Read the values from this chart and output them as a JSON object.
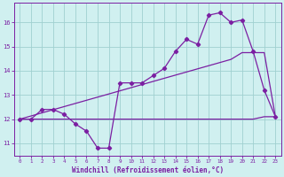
{
  "x": [
    0,
    1,
    2,
    3,
    4,
    5,
    6,
    7,
    8,
    9,
    10,
    11,
    12,
    13,
    14,
    15,
    16,
    17,
    18,
    19,
    20,
    21,
    22,
    23
  ],
  "windchill": [
    12.0,
    12.0,
    12.4,
    12.4,
    12.2,
    11.8,
    11.5,
    10.8,
    10.8,
    13.5,
    13.5,
    13.5,
    13.8,
    14.1,
    14.8,
    15.3,
    15.1,
    16.3,
    16.4,
    16.0,
    16.1,
    14.8,
    13.2,
    12.1
  ],
  "smooth_line": [
    12.0,
    12.13,
    12.26,
    12.39,
    12.52,
    12.65,
    12.78,
    12.91,
    13.04,
    13.17,
    13.3,
    13.43,
    13.56,
    13.69,
    13.82,
    13.95,
    14.08,
    14.21,
    14.34,
    14.47,
    14.75,
    14.75,
    14.75,
    12.1
  ],
  "flat_line_x": [
    0,
    1,
    2,
    3,
    4,
    5,
    6,
    7,
    8,
    9,
    10,
    11,
    12,
    13,
    14,
    15,
    16,
    17,
    18,
    19,
    20,
    21,
    22,
    23
  ],
  "flat_line_y": [
    12.0,
    12.0,
    12.0,
    12.0,
    12.0,
    12.0,
    12.0,
    12.0,
    12.0,
    12.0,
    12.0,
    12.0,
    12.0,
    12.0,
    12.0,
    12.0,
    12.0,
    12.0,
    12.0,
    12.0,
    12.0,
    12.0,
    12.1,
    12.1
  ],
  "line_color": "#7b1fa2",
  "bg_color": "#d0f0f0",
  "grid_color": "#a0d0d0",
  "xlabel": "Windchill (Refroidissement éolien,°C)",
  "ylim": [
    10.5,
    16.8
  ],
  "xlim": [
    -0.5,
    23.5
  ],
  "yticks": [
    11,
    12,
    13,
    14,
    15,
    16
  ],
  "xticks": [
    0,
    1,
    2,
    3,
    4,
    5,
    6,
    7,
    8,
    9,
    10,
    11,
    12,
    13,
    14,
    15,
    16,
    17,
    18,
    19,
    20,
    21,
    22,
    23
  ]
}
